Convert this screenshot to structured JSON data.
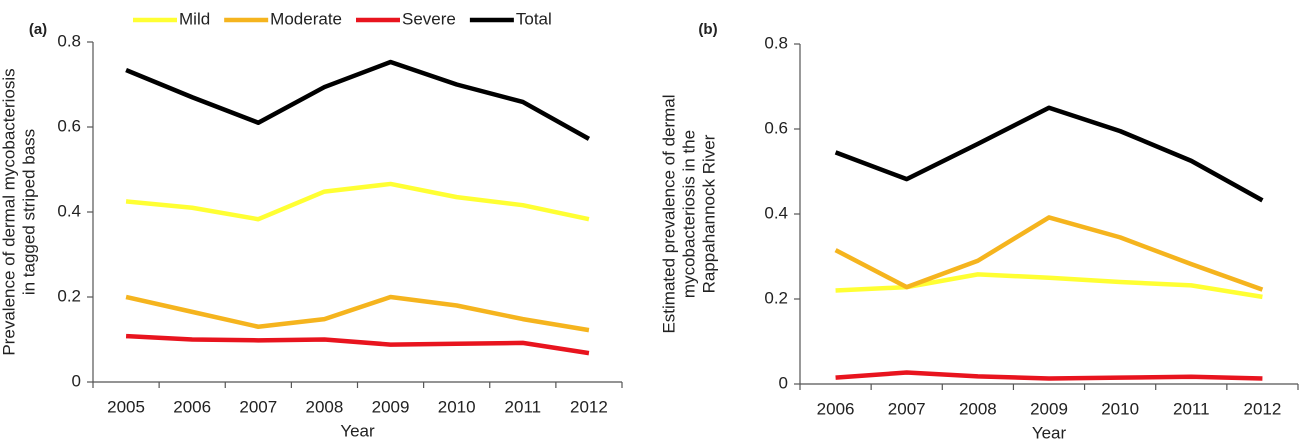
{
  "chart_data": [
    {
      "type": "line",
      "panel_label": "(a)",
      "xlabel": "Year",
      "ylabel": [
        "Prevalence of dermal mycobacteriosis",
        "in tagged striped bass"
      ],
      "categories": [
        "2005",
        "2006",
        "2007",
        "2008",
        "2009",
        "2010",
        "2011",
        "2012"
      ],
      "ylim": [
        0,
        0.8
      ],
      "yticks": [
        0,
        0.2,
        0.4,
        0.6,
        0.8
      ],
      "legend": "top",
      "series": [
        {
          "name": "Mild",
          "color": "#ffff33",
          "values": [
            0.425,
            0.41,
            0.383,
            0.448,
            0.466,
            0.435,
            0.416,
            0.383
          ]
        },
        {
          "name": "Moderate",
          "color": "#f5b41e",
          "values": [
            0.2,
            0.165,
            0.13,
            0.148,
            0.2,
            0.18,
            0.148,
            0.122
          ]
        },
        {
          "name": "Severe",
          "color": "#e8141e",
          "values": [
            0.108,
            0.1,
            0.098,
            0.1,
            0.088,
            0.09,
            0.092,
            0.068
          ]
        },
        {
          "name": "Total",
          "color": "#000000",
          "values": [
            0.734,
            0.67,
            0.61,
            0.694,
            0.753,
            0.7,
            0.659,
            0.572
          ]
        }
      ]
    },
    {
      "type": "line",
      "panel_label": "(b)",
      "xlabel": "Year",
      "ylabel": [
        "Estimated prevalence of dermal",
        "mycobacteriosis in the",
        "Rappahannock River"
      ],
      "categories": [
        "2006",
        "2007",
        "2008",
        "2009",
        "2010",
        "2011",
        "2012"
      ],
      "ylim": [
        0,
        0.8
      ],
      "yticks": [
        0,
        0.2,
        0.4,
        0.6,
        0.8
      ],
      "series": [
        {
          "color": "#ffff33",
          "values": [
            0.22,
            0.228,
            0.258,
            0.25,
            0.24,
            0.232,
            0.205
          ]
        },
        {
          "color": "#f5b41e",
          "values": [
            0.315,
            0.228,
            0.29,
            0.392,
            0.345,
            0.282,
            0.222
          ]
        },
        {
          "color": "#e8141e",
          "values": [
            0.015,
            0.027,
            0.018,
            0.013,
            0.015,
            0.017,
            0.013
          ]
        },
        {
          "color": "#000000",
          "values": [
            0.545,
            0.482,
            0.565,
            0.65,
            0.595,
            0.525,
            0.432
          ]
        }
      ]
    }
  ]
}
